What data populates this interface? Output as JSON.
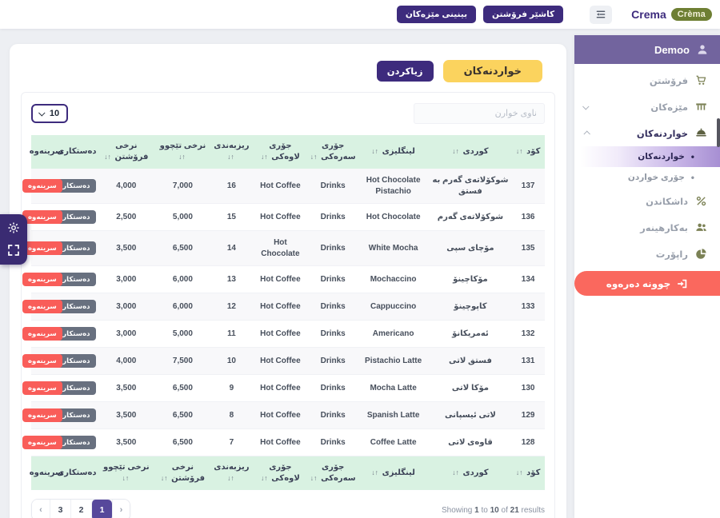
{
  "colors": {
    "accent_purple": "#3d2b7d",
    "sidebar_header_purple": "#72649e",
    "active_page_purple": "#57489b",
    "title_yellow": "#fbd35e",
    "delete_red": "#f95d59",
    "logout_red": "#fa685e",
    "table_header_green": "#d9f2e2",
    "brand_olive": "#6e7f33",
    "sidebar_icon_olive": "#7b8155"
  },
  "topbar": {
    "brand_text": "Crema",
    "brand_badge": "Crèma",
    "cashier_button": "كاشێر فرۆشتن",
    "view_tables_button": "بينينى مێزەكان"
  },
  "sidebar": {
    "user_name": "Demoo",
    "bullet": "•",
    "items": [
      {
        "label": "فرۆشتن",
        "icon": "cart"
      },
      {
        "label": "مێزەكان",
        "icon": "tables",
        "chevron": "down"
      },
      {
        "label": "خواردنەكان",
        "icon": "food",
        "chevron": "up",
        "active": true,
        "children": [
          {
            "label": "خواردنەكان",
            "active": true
          },
          {
            "label": "جۆرى خواردن"
          }
        ]
      },
      {
        "label": "داشكاندن",
        "icon": "percent"
      },
      {
        "label": "بەكارهينەر",
        "icon": "users"
      },
      {
        "label": "راپۆرت",
        "icon": "report"
      }
    ],
    "logout_label": "چوونە دەرەوە"
  },
  "main": {
    "title_badge": "خواردنەكان",
    "add_button": "زياكردن",
    "page_size": "10",
    "search_placeholder": "ناوى خوارن",
    "table": {
      "sort_icon": "↑↓",
      "edit_label": "دەستكارى",
      "delete_label": "سرينەوە",
      "headers": [
        {
          "key": "code",
          "label": "كۆد",
          "sort": true
        },
        {
          "key": "ku",
          "label": "كوردى",
          "sort": true
        },
        {
          "key": "en",
          "label": "لينگليزى",
          "sort": true
        },
        {
          "key": "main",
          "label": "جۆرى سەرەكى",
          "sort": true
        },
        {
          "key": "sub",
          "label": "جۆرى لاوەكى",
          "sort": true
        },
        {
          "key": "order",
          "label": "ريزبەندى",
          "sort": true
        },
        {
          "key": "cost",
          "label": "نرخى تێچوو",
          "sort": true
        },
        {
          "key": "sell",
          "label": "نرخى فرۆشتن",
          "sort": true
        },
        {
          "key": "edit",
          "label": "دەستكارى",
          "sort": false
        },
        {
          "key": "delete",
          "label": "سرينەوە",
          "sort": false
        }
      ],
      "footer_headers": [
        {
          "key": "code",
          "label": "كۆد",
          "sort": true
        },
        {
          "key": "ku",
          "label": "كوردى",
          "sort": true
        },
        {
          "key": "en",
          "label": "لينگليزى",
          "sort": true
        },
        {
          "key": "main",
          "label": "جۆرى سەرەكى",
          "sort": true
        },
        {
          "key": "sub",
          "label": "جۆرى لاوەكى",
          "sort": true
        },
        {
          "key": "order",
          "label": "ريزبەندى",
          "sort": true
        },
        {
          "key": "sell",
          "label": "نرخى فرۆشتن",
          "sort": true
        },
        {
          "key": "cost",
          "label": "نرخى تێچوو",
          "sort": true
        },
        {
          "key": "edit",
          "label": "دەستكارى",
          "sort": false
        },
        {
          "key": "delete",
          "label": "سرينەوە",
          "sort": false
        }
      ],
      "rows": [
        {
          "code": "137",
          "ku": "شوكۆلاتەى گەرم بە فستق",
          "en": "Hot Chocolate Pistachio",
          "main": "Drinks",
          "sub": "Hot Coffee",
          "order": "16",
          "cost": "7,000",
          "sell": "4,000"
        },
        {
          "code": "136",
          "ku": "شوكۆلاتەى گەرم",
          "en": "Hot Chocolate",
          "main": "Drinks",
          "sub": "Hot Coffee",
          "order": "15",
          "cost": "5,000",
          "sell": "2,500"
        },
        {
          "code": "135",
          "ku": "مۆچاى سپى",
          "en": "White Mocha",
          "main": "Drinks",
          "sub": "Hot Chocolate",
          "order": "14",
          "cost": "6,500",
          "sell": "3,500"
        },
        {
          "code": "134",
          "ku": "مۆكاچينۆ",
          "en": "Mochaccino",
          "main": "Drinks",
          "sub": "Hot Coffee",
          "order": "13",
          "cost": "6,000",
          "sell": "3,000"
        },
        {
          "code": "133",
          "ku": "كاپوچينۆ",
          "en": "Cappuccino",
          "main": "Drinks",
          "sub": "Hot Coffee",
          "order": "12",
          "cost": "6,000",
          "sell": "3,000"
        },
        {
          "code": "132",
          "ku": "ئەمريكانۆ",
          "en": "Americano",
          "main": "Drinks",
          "sub": "Hot Coffee",
          "order": "11",
          "cost": "5,000",
          "sell": "3,000"
        },
        {
          "code": "131",
          "ku": "فستق لاتى",
          "en": "Pistachio Latte",
          "main": "Drinks",
          "sub": "Hot Coffee",
          "order": "10",
          "cost": "7,500",
          "sell": "4,000"
        },
        {
          "code": "130",
          "ku": "مۆكا لاتى",
          "en": "Mocha Latte",
          "main": "Drinks",
          "sub": "Hot Coffee",
          "order": "9",
          "cost": "6,500",
          "sell": "3,500"
        },
        {
          "code": "129",
          "ku": "لاتى ئيسپانى",
          "en": "Spanish Latte",
          "main": "Drinks",
          "sub": "Hot Coffee",
          "order": "8",
          "cost": "6,500",
          "sell": "3,500"
        },
        {
          "code": "128",
          "ku": "قاوەى لاتى",
          "en": "Coffee Latte",
          "main": "Drinks",
          "sub": "Hot Coffee",
          "order": "7",
          "cost": "6,500",
          "sell": "3,500"
        }
      ]
    },
    "pagination": {
      "buttons": [
        "‹",
        "3",
        "2",
        "1",
        "›"
      ],
      "active": "1",
      "summary_parts": [
        {
          "text": "Showing "
        },
        {
          "text": "1",
          "bold": true
        },
        {
          "text": " to "
        },
        {
          "text": "10",
          "bold": true
        },
        {
          "text": " of "
        },
        {
          "text": "21",
          "bold": true
        },
        {
          "text": " results"
        }
      ]
    }
  }
}
